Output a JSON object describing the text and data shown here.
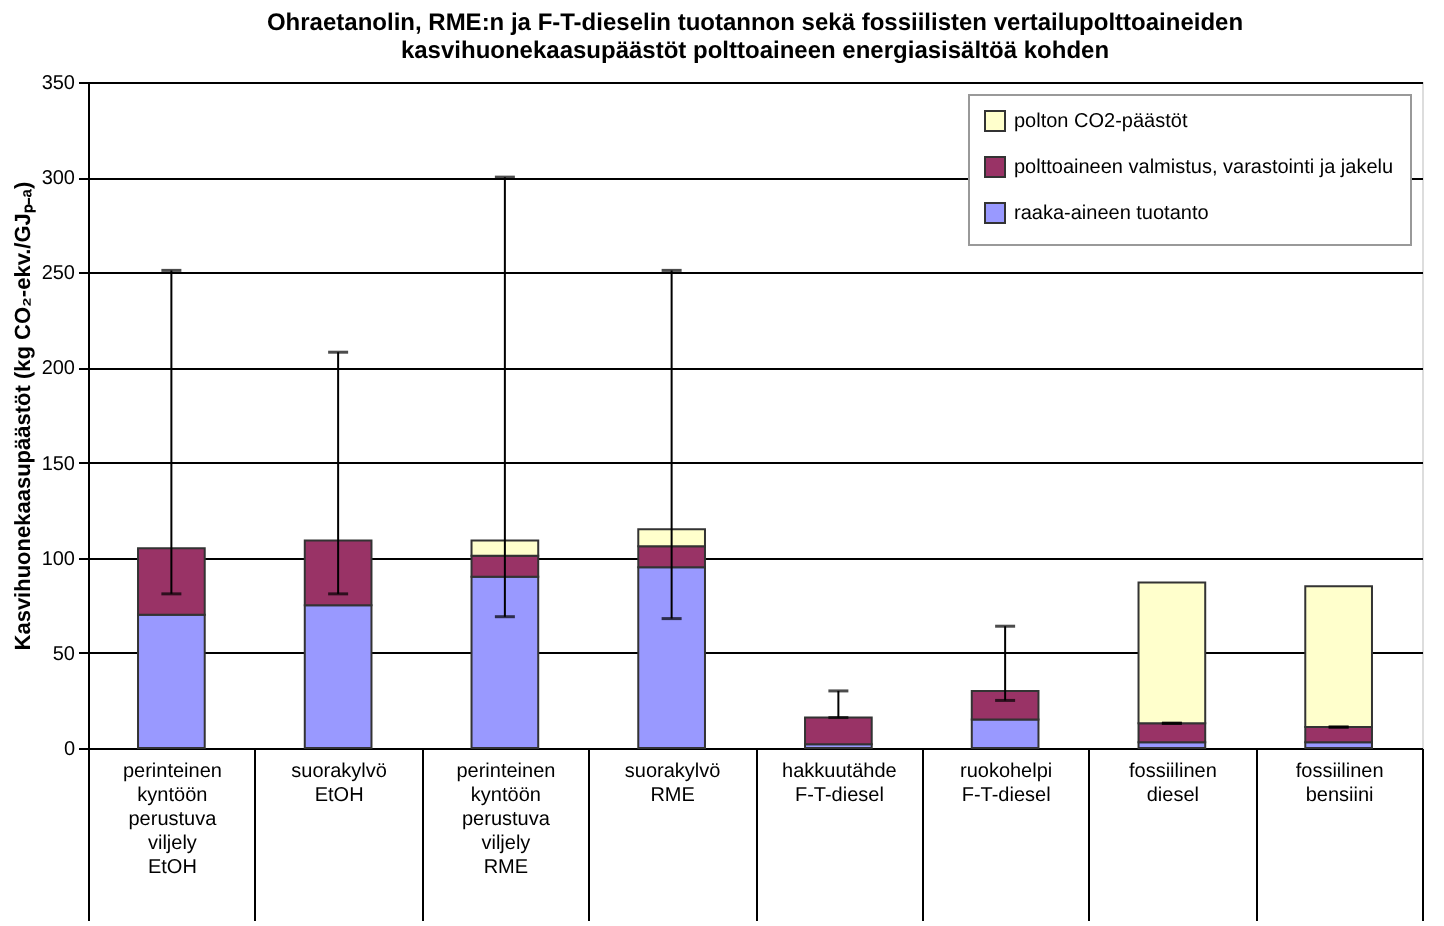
{
  "chart_data": {
    "type": "bar",
    "stacked": true,
    "title": "Ohraetanolin, RME:n ja F-T-dieselin tuotannon sekä fossiilisten vertailupolttoaineiden\nkasvihuonekaasupäästöt polttoaineen energiasisältöä kohden",
    "ylabel": "Kasvihuonekaasupäästöt (kg CO₂-ekv./GJₚ₋ₐ)",
    "categories": [
      "perinteinen\nkyntöön\nperustuva\nviljely\n\nEtOH",
      "suorakylvö\n\n\n\n\nEtOH",
      "perinteinen\nkyntöön\nperustuva\nviljely\n\nRME",
      "suorakylvö\n\n\n\n\nRME",
      "hakkuutähde\n\n\n\n\nF-T-diesel",
      "ruokohelpi\n\n\n\n\nF-T-diesel",
      "fossiilinen\n\n\n\n\ndiesel",
      "fossiilinen\n\n\n\n\nbensiini"
    ],
    "series": [
      {
        "name": "raaka-aineen tuotanto",
        "color": "#9999ff",
        "values": [
          70,
          75,
          90,
          95,
          2,
          15,
          3,
          3
        ]
      },
      {
        "name": "polttoaineen valmistus, varastointi ja jakelu",
        "color": "#993366",
        "values": [
          35,
          34,
          11,
          11,
          14,
          15,
          10,
          8
        ],
        "errors": [
          [
            81,
            251
          ],
          [
            81,
            208
          ],
          null,
          null,
          [
            16,
            30
          ],
          [
            25,
            64
          ],
          null,
          null
        ]
      },
      {
        "name": "polton CO2-päästöt",
        "color": "#ffffcc",
        "values": [
          null,
          null,
          8,
          9,
          null,
          null,
          74,
          74
        ],
        "errors": [
          null,
          null,
          [
            69,
            300
          ],
          [
            68,
            251
          ],
          null,
          null,
          [
            13,
            13
          ],
          [
            11,
            11
          ]
        ]
      }
    ],
    "ylim": [
      0,
      350
    ],
    "yticks": [
      0,
      50,
      100,
      150,
      200,
      250,
      300,
      350
    ],
    "grid": "y",
    "legend": "top right"
  }
}
